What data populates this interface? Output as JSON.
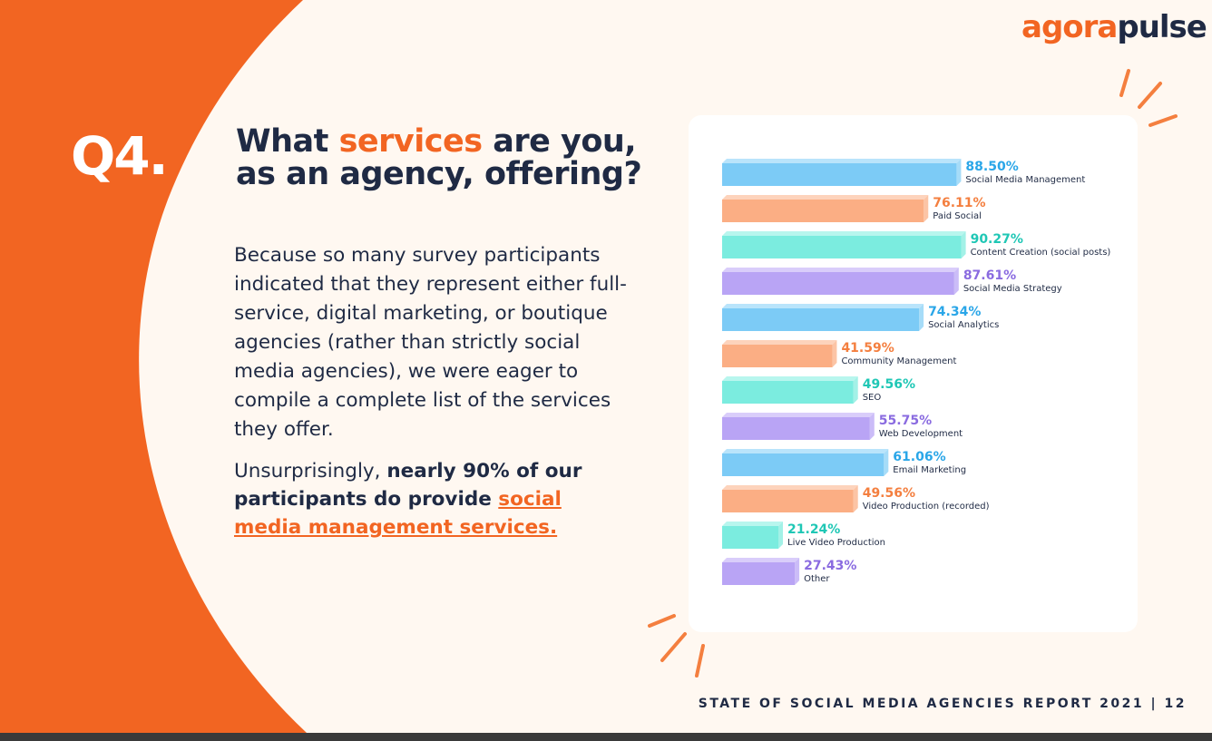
{
  "brand": {
    "logo_part1": "agora",
    "logo_part2": "pulse"
  },
  "question": {
    "number": "Q4.",
    "title_before": "What ",
    "title_highlight": "services",
    "title_after_line1": " are you,",
    "title_line2": "as an agency, offering?"
  },
  "body": {
    "paragraph1": "Because so many survey participants indicated that they represent either full-service, digital marketing, or boutique agencies (rather than strictly social media agencies), we were eager to compile a complete list of the services they offer.",
    "p2_plain": "Unsurprisingly, ",
    "p2_bold": "nearly 90% of our participants do provide ",
    "p2_link": "social media management services."
  },
  "footer": {
    "text": "STATE OF SOCIAL MEDIA AGENCIES REPORT 2021 | 12"
  },
  "colors": {
    "orange": "#f26522",
    "navy": "#1f2a44",
    "blue": "#2aa6e8",
    "salmon": "#f47f3f",
    "teal": "#1fc7b5",
    "purple": "#8a6be0"
  },
  "chart_data": {
    "type": "bar",
    "orientation": "horizontal",
    "categories": [
      "Social Media Management",
      "Paid Social",
      "Content Creation (social posts)",
      "Social Media Strategy",
      "Social Analytics",
      "Community Management",
      "SEO",
      "Web Development",
      "Email Marketing",
      "Video Production (recorded)",
      "Live Video Production",
      "Other"
    ],
    "values": [
      88.5,
      76.11,
      90.27,
      87.61,
      74.34,
      41.59,
      49.56,
      55.75,
      61.06,
      49.56,
      21.24,
      27.43
    ],
    "value_labels": [
      "88.50%",
      "76.11%",
      "90.27%",
      "87.61%",
      "74.34%",
      "41.59%",
      "49.56%",
      "55.75%",
      "61.06%",
      "49.56%",
      "21.24%",
      "27.43%"
    ],
    "bar_colors": [
      "blue",
      "salmon",
      "teal",
      "purple",
      "blue",
      "salmon",
      "teal",
      "purple",
      "blue",
      "salmon",
      "teal",
      "purple"
    ],
    "xlim": [
      0,
      100
    ],
    "title": "",
    "xlabel": "",
    "ylabel": "",
    "grid": false,
    "legend": "none"
  }
}
